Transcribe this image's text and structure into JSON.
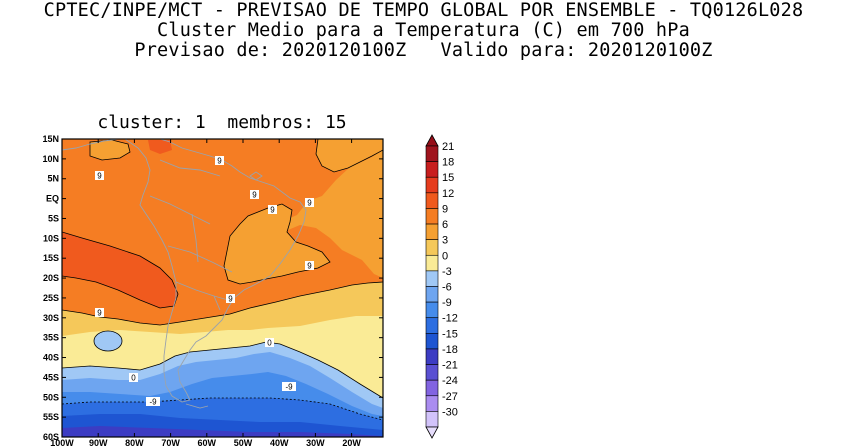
{
  "header": {
    "line1": "CPTEC/INPE/MCT - PREVISAO DE TEMPO GLOBAL POR ENSEMBLE - TQ0126L028",
    "line2": "Cluster Medio para a Temperatura (C) em 700 hPa",
    "line3": "Previsao de: 2020120100Z   Valido para: 2020120100Z"
  },
  "map": {
    "title": "cluster: 1  membros: 15",
    "lat_labels": [
      "15N",
      "10N",
      "5N",
      "EQ",
      "5S",
      "10S",
      "15S",
      "20S",
      "25S",
      "30S",
      "35S",
      "40S",
      "45S",
      "50S",
      "55S",
      "60S"
    ],
    "lon_labels": [
      "100W",
      "90W",
      "80W",
      "70W",
      "60W",
      "50W",
      "40W",
      "30W",
      "20W"
    ],
    "contour_labels": [
      {
        "text": "9"
      },
      {
        "text": "9"
      },
      {
        "text": "9"
      },
      {
        "text": "9"
      },
      {
        "text": "9"
      },
      {
        "text": "9"
      },
      {
        "text": "9"
      },
      {
        "text": "9"
      },
      {
        "text": "0"
      },
      {
        "text": "0"
      },
      {
        "text": "-9"
      },
      {
        "text": "-9"
      }
    ]
  },
  "colorbar": {
    "labels": [
      "21",
      "18",
      "15",
      "12",
      "9",
      "6",
      "3",
      "0",
      "-3",
      "-6",
      "-9",
      "-12",
      "-15",
      "-18",
      "-21",
      "-24",
      "-27",
      "-30"
    ],
    "colors": [
      "#a0141e",
      "#c81e1e",
      "#e63c1e",
      "#f05a1e",
      "#f57d23",
      "#f5a032",
      "#f5c85a",
      "#faeb96",
      "#a0c8f5",
      "#6ea5f0",
      "#468ceb",
      "#2d6ee1",
      "#1e55d2",
      "#3c3cc3",
      "#5a50d2",
      "#8264e1",
      "#aa8cf0",
      "#d2c3fa"
    ],
    "top_color": "#960f19",
    "bottom_color": "#e6ddfc"
  }
}
